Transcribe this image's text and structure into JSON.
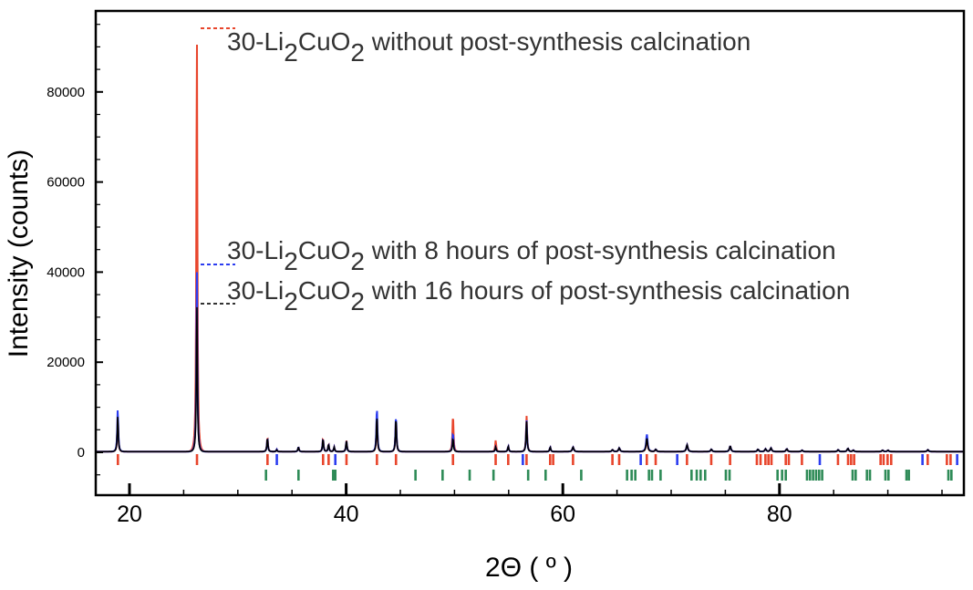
{
  "chart_data": {
    "type": "line",
    "title": "",
    "xlabel": "2Θ ( º )",
    "ylabel": "Intensity (counts)",
    "xlim": [
      16.9,
      97.0
    ],
    "ylim": [
      -9300,
      98000
    ],
    "x_ticks": [
      20,
      40,
      60,
      80
    ],
    "y_ticks": [
      0,
      20000,
      40000,
      60000,
      80000
    ],
    "grid": false,
    "legend": "inline annotations with dashed leaders at top-left",
    "series": [
      {
        "name": "30-Li2CuO2 without post-synthesis calcination",
        "color": "#e8452c",
        "peaks": [
          [
            18.93,
            8000
          ],
          [
            26.23,
            93000
          ],
          [
            32.74,
            3200
          ],
          [
            33.6,
            500
          ],
          [
            35.6,
            1000
          ],
          [
            37.87,
            3000
          ],
          [
            38.38,
            1700
          ],
          [
            38.9,
            1000
          ],
          [
            40.03,
            2500
          ],
          [
            42.84,
            8000
          ],
          [
            44.6,
            7500
          ],
          [
            49.86,
            8200
          ],
          [
            53.8,
            2500
          ],
          [
            54.96,
            1200
          ],
          [
            56.65,
            8000
          ],
          [
            58.83,
            1000
          ],
          [
            60.94,
            1000
          ],
          [
            64.58,
            400
          ],
          [
            65.2,
            800
          ],
          [
            67.75,
            3000
          ],
          [
            68.57,
            500
          ],
          [
            71.46,
            1500
          ],
          [
            73.7,
            500
          ],
          [
            75.44,
            1200
          ],
          [
            78.0,
            500
          ],
          [
            78.7,
            600
          ],
          [
            79.2,
            800
          ],
          [
            80.66,
            600
          ],
          [
            82.07,
            300
          ],
          [
            85.4,
            400
          ],
          [
            86.3,
            700
          ],
          [
            86.8,
            300
          ],
          [
            89.5,
            300
          ],
          [
            90.0,
            300
          ],
          [
            93.68,
            400
          ]
        ]
      },
      {
        "name": "30-Li2CuO2 with 8 hours of post-synthesis calcination",
        "color": "#2b3cf0",
        "peaks": [
          [
            18.93,
            9500
          ],
          [
            26.23,
            41000
          ],
          [
            32.74,
            3000
          ],
          [
            33.6,
            500
          ],
          [
            35.6,
            1000
          ],
          [
            37.87,
            2800
          ],
          [
            38.38,
            1600
          ],
          [
            38.9,
            1000
          ],
          [
            40.03,
            2400
          ],
          [
            42.84,
            9900
          ],
          [
            44.6,
            8000
          ],
          [
            49.86,
            4200
          ],
          [
            53.8,
            1000
          ],
          [
            54.96,
            1200
          ],
          [
            56.65,
            7000
          ],
          [
            58.83,
            1000
          ],
          [
            60.94,
            1000
          ],
          [
            64.58,
            400
          ],
          [
            65.2,
            800
          ],
          [
            67.75,
            3900
          ],
          [
            68.57,
            500
          ],
          [
            71.46,
            1500
          ],
          [
            73.7,
            500
          ],
          [
            75.44,
            1200
          ],
          [
            78.0,
            500
          ],
          [
            78.7,
            600
          ],
          [
            79.2,
            800
          ],
          [
            80.66,
            600
          ],
          [
            82.07,
            300
          ],
          [
            85.4,
            400
          ],
          [
            86.3,
            700
          ],
          [
            86.8,
            300
          ],
          [
            89.5,
            300
          ],
          [
            90.0,
            300
          ],
          [
            93.68,
            400
          ]
        ]
      },
      {
        "name": "30-Li2CuO2 with 16 hours of post-synthesis calcination",
        "color": "#000000",
        "peaks": [
          [
            18.93,
            8000
          ],
          [
            26.23,
            33000
          ],
          [
            32.74,
            3000
          ],
          [
            33.6,
            400
          ],
          [
            35.6,
            1000
          ],
          [
            37.87,
            2800
          ],
          [
            38.38,
            1600
          ],
          [
            38.9,
            1000
          ],
          [
            40.03,
            2400
          ],
          [
            42.84,
            8000
          ],
          [
            44.6,
            7500
          ],
          [
            49.86,
            3000
          ],
          [
            53.8,
            1000
          ],
          [
            54.96,
            1200
          ],
          [
            56.65,
            6800
          ],
          [
            58.83,
            1000
          ],
          [
            60.94,
            1000
          ],
          [
            64.58,
            400
          ],
          [
            65.2,
            800
          ],
          [
            67.75,
            3000
          ],
          [
            68.57,
            500
          ],
          [
            71.46,
            1500
          ],
          [
            73.7,
            500
          ],
          [
            75.44,
            1200
          ],
          [
            78.0,
            500
          ],
          [
            78.7,
            600
          ],
          [
            79.2,
            800
          ],
          [
            80.66,
            600
          ],
          [
            82.07,
            300
          ],
          [
            85.4,
            400
          ],
          [
            86.3,
            700
          ],
          [
            86.8,
            300
          ],
          [
            89.5,
            300
          ],
          [
            90.0,
            300
          ],
          [
            93.68,
            400
          ]
        ]
      }
    ],
    "reference_ticks": [
      {
        "color": "#e8452c",
        "row": 1,
        "positions": [
          18.93,
          26.23,
          32.74,
          37.87,
          38.38,
          40.03,
          42.84,
          44.6,
          49.86,
          53.8,
          54.96,
          56.65,
          58.83,
          59.11,
          60.94,
          64.58,
          65.2,
          67.75,
          68.57,
          71.46,
          73.7,
          75.44,
          77.91,
          78.25,
          78.7,
          78.98,
          79.26,
          80.58,
          80.86,
          82.07,
          85.4,
          86.33,
          86.61,
          86.89,
          89.33,
          89.61,
          89.98,
          90.31,
          93.68,
          95.45,
          95.79
        ]
      },
      {
        "color": "#2b3cf0",
        "row": 1,
        "positions": [
          33.6,
          39.0,
          56.31,
          67.19,
          70.56,
          83.72,
          93.2,
          96.4
        ]
      },
      {
        "color": "#2e8b57",
        "row": 2,
        "positions": [
          32.6,
          35.6,
          38.8,
          39.0,
          46.4,
          48.9,
          51.4,
          53.6,
          56.8,
          58.41,
          61.7,
          65.93,
          66.35,
          66.69,
          67.95,
          68.23,
          69.02,
          71.88,
          72.36,
          72.72,
          73.14,
          75.05,
          75.39,
          79.82,
          80.24,
          80.58,
          82.54,
          82.82,
          83.1,
          83.38,
          83.66,
          83.94,
          86.75,
          87.03,
          88.07,
          88.35,
          89.78,
          90.06,
          91.72,
          91.94,
          95.59,
          95.87
        ]
      }
    ]
  }
}
